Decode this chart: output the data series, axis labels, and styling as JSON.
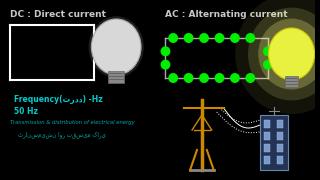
{
  "bg_color": "#000000",
  "dc_label": "DC : Direct current",
  "ac_label": "AC : Alternating current",
  "dc_label_color": "#c8c8c8",
  "ac_label_color": "#c8c8c8",
  "freq_label1": "Frequency(تردد) -Hz",
  "freq_label2": "50 Hz",
  "freq_color": "#00cccc",
  "trans_label": "Transmission & distribution of electrical energy",
  "trans_color": "#00aaaa",
  "urdu_label": "ٹرانسمیشن اور تقسیم کاری",
  "green_dot_color": "#00ee00",
  "white": "#ffffff",
  "gray": "#aaaaaa",
  "orange": "#cc8800",
  "building_blue": "#2255aa"
}
